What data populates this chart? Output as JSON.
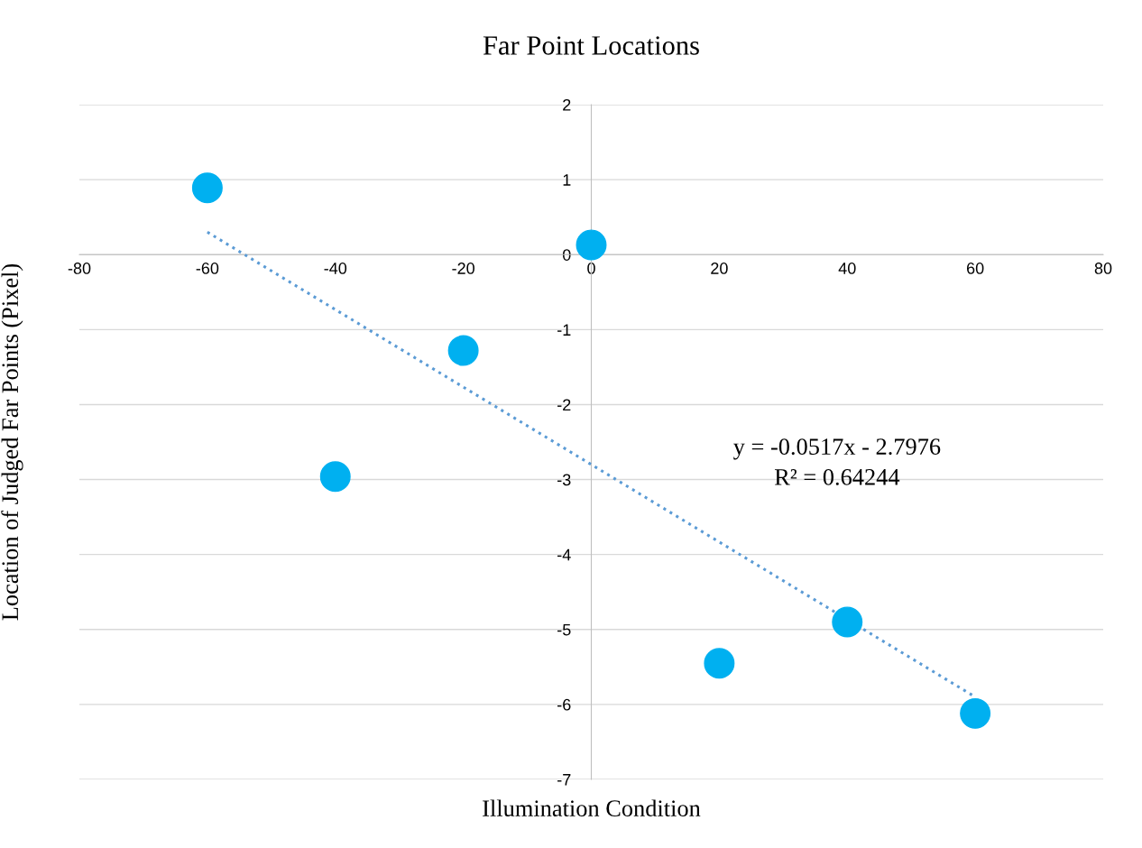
{
  "chart_data": {
    "type": "scatter",
    "title": "Far Point Locations",
    "xlabel": "Illumination Condition",
    "ylabel": "Location of Judged Far Points (Pixel)",
    "x": [
      -60,
      -40,
      -20,
      0,
      20,
      40,
      60
    ],
    "series": [
      {
        "color": "#00b0f0",
        "marker": "circle",
        "values": [
          0.89,
          -2.96,
          -1.28,
          0.13,
          -5.45,
          -4.9,
          -6.12
        ]
      },
      {
        "type": "line",
        "color": "#5b9bd5",
        "line_style": "dotted",
        "x": [
          -60,
          60
        ],
        "values": [
          0.3,
          -5.9
        ]
      }
    ],
    "annotations": [
      "y = -0.0517x - 2.7976",
      "R² = 0.64244"
    ],
    "xlim": [
      -80,
      80
    ],
    "xticks": [
      -80,
      -60,
      -40,
      -20,
      0,
      20,
      40,
      60,
      80
    ],
    "ylim": [
      -7,
      2
    ],
    "yticks": [
      -7,
      -6,
      -5,
      -4,
      -3,
      -2,
      -1,
      0,
      1,
      2
    ],
    "grid": "y",
    "legend": false
  }
}
